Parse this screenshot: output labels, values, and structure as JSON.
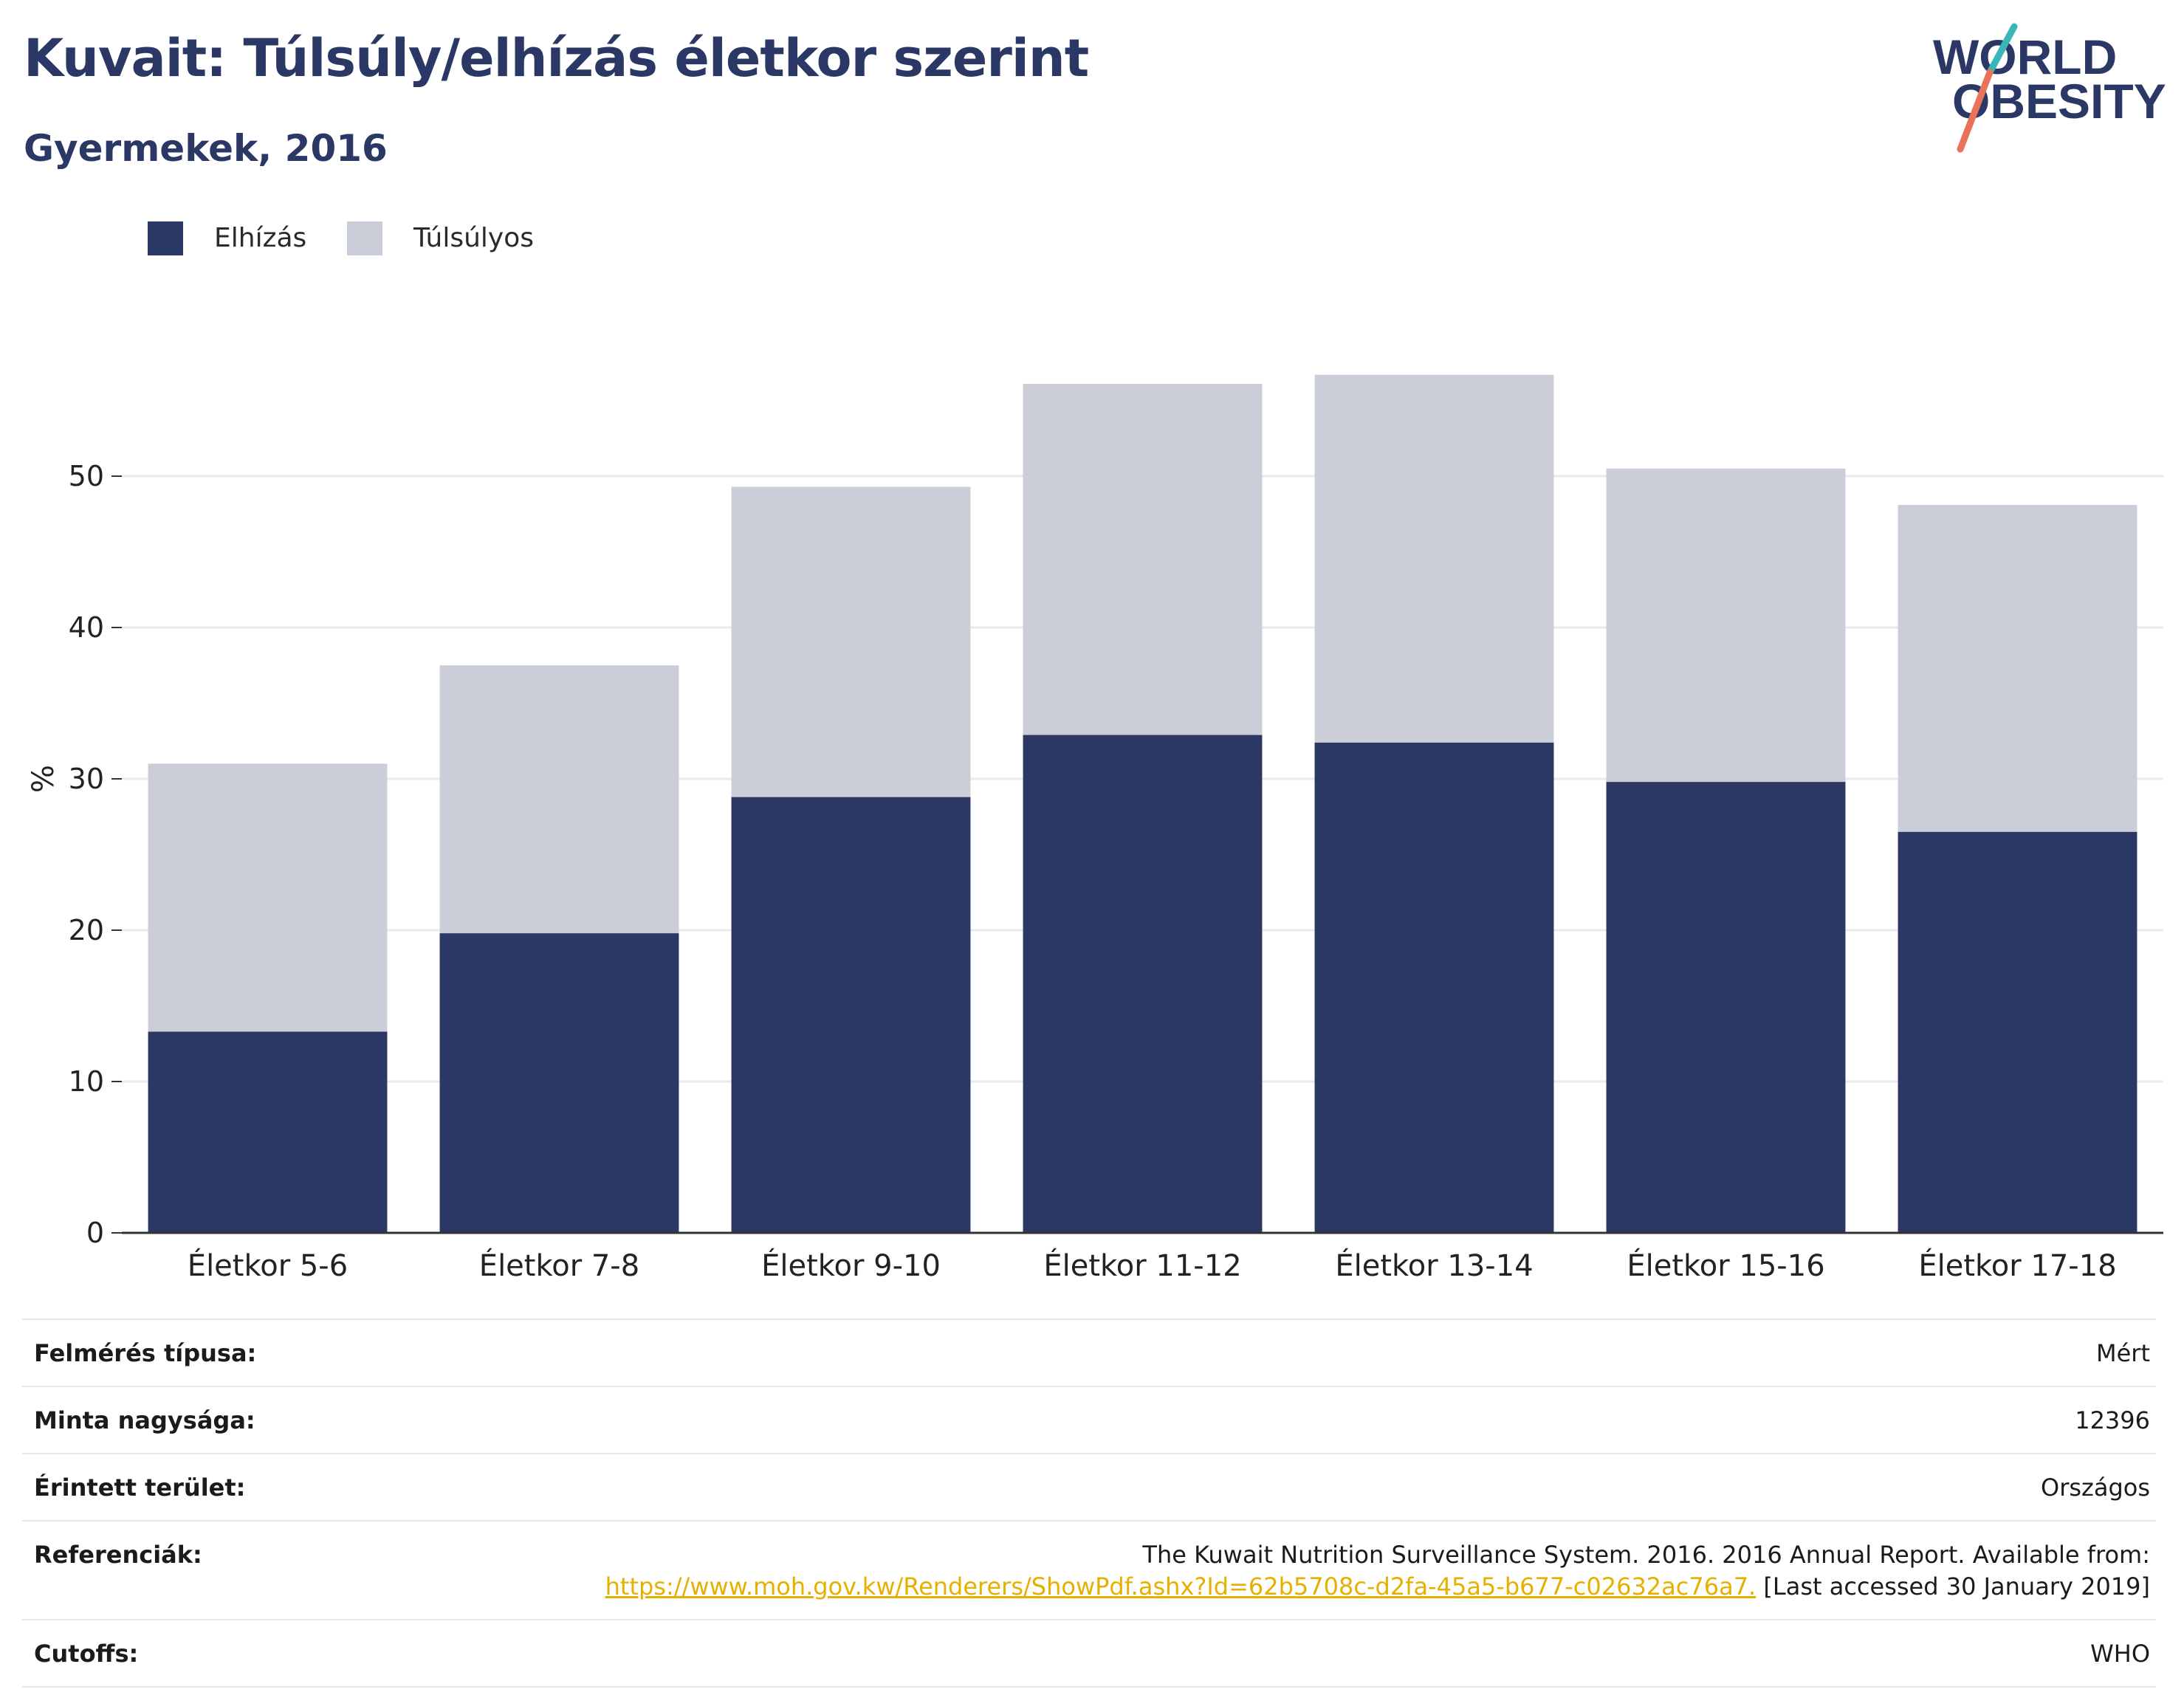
{
  "header": {
    "title": "Kuvait: Túlsúly/elhízás életkor szerint",
    "subtitle": "Gyermekek, 2016"
  },
  "logo": {
    "line1": "WORLD",
    "line2": "OBESITY",
    "colors": {
      "text": "#2b3865",
      "slash_teal": "#3bb6b8",
      "slash_coral": "#e8735a"
    }
  },
  "legend": [
    {
      "label": "Elhízás",
      "color": "#2b3865"
    },
    {
      "label": "Túlsúlyos",
      "color": "#cbcdd8"
    }
  ],
  "chart_data": {
    "type": "bar",
    "stacked": true,
    "categories": [
      "Életkor 5-6",
      "Életkor 7-8",
      "Életkor 9-10",
      "Életkor 11-12",
      "Életkor 13-14",
      "Életkor 15-16",
      "Életkor 17-18"
    ],
    "series": [
      {
        "name": "Elhízás",
        "color": "#2b3865",
        "values": [
          13.3,
          19.8,
          28.8,
          32.9,
          32.4,
          29.8,
          26.5
        ]
      },
      {
        "name": "Túlsúlyos",
        "color": "#cbcdd8",
        "values": [
          17.7,
          17.7,
          20.5,
          23.2,
          24.3,
          20.7,
          21.6
        ]
      }
    ],
    "title": "Kuvait: Túlsúly/elhízás életkor szerint",
    "subtitle": "Gyermekek, 2016",
    "xlabel": "",
    "ylabel": "%",
    "ylim": [
      0,
      60
    ],
    "yticks": [
      0,
      10,
      20,
      30,
      40,
      50
    ],
    "grid": true,
    "legend_position": "top-left"
  },
  "meta": {
    "rows": [
      {
        "label": "Felmérés típusa:",
        "value": "Mért"
      },
      {
        "label": "Minta nagysága:",
        "value": "12396"
      },
      {
        "label": "Érintett terület:",
        "value": "Országos"
      },
      {
        "label": "Referenciák:",
        "value_line1": "The Kuwait Nutrition Surveillance System. 2016. 2016 Annual Report. Available from:",
        "link": "https://www.moh.gov.kw/Renderers/ShowPdf.ashx?Id=62b5708c-d2fa-45a5-b677-c02632ac76a7.",
        "value_suffix": " [Last accessed 30 January 2019]"
      },
      {
        "label": "Cutoffs:",
        "value": "WHO"
      }
    ]
  }
}
